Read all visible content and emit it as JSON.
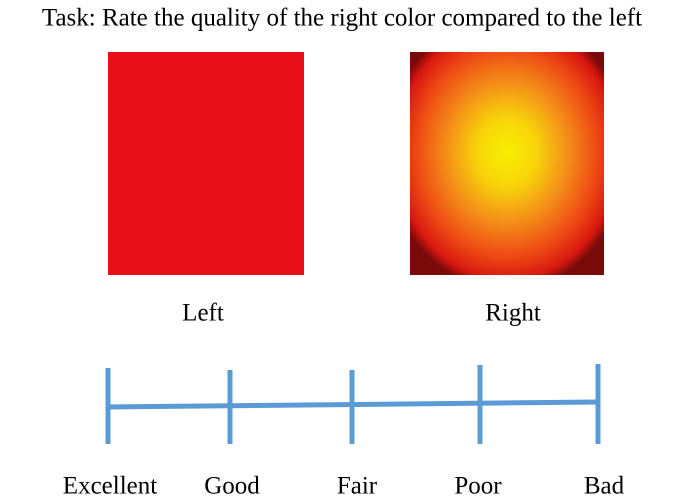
{
  "task": "Task: Rate the quality of the right color compared to the left",
  "images": [
    {
      "label": "Left"
    },
    {
      "label": "Right"
    }
  ],
  "scale": {
    "labels": [
      "Excellent",
      "Good",
      "Fair",
      "Poor",
      "Bad"
    ]
  }
}
